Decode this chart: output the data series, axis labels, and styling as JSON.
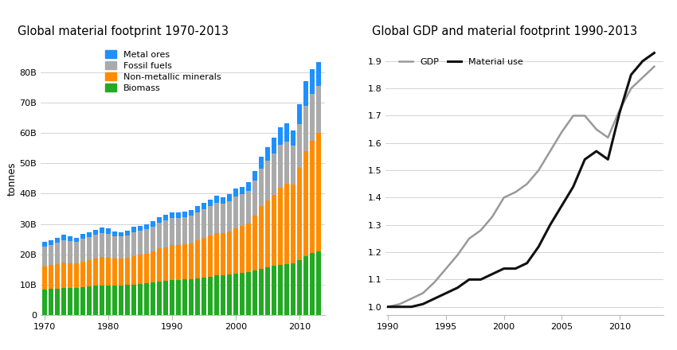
{
  "left_title": "Global material footprint 1970-2013",
  "right_title": "Global GDP and material footprint 1990-2013",
  "left_ylabel": "tonnes",
  "bar_years": [
    1970,
    1971,
    1972,
    1973,
    1974,
    1975,
    1976,
    1977,
    1978,
    1979,
    1980,
    1981,
    1982,
    1983,
    1984,
    1985,
    1986,
    1987,
    1988,
    1989,
    1990,
    1991,
    1992,
    1993,
    1994,
    1995,
    1996,
    1997,
    1998,
    1999,
    2000,
    2001,
    2002,
    2003,
    2004,
    2005,
    2006,
    2007,
    2008,
    2009,
    2010,
    2011,
    2012,
    2013
  ],
  "biomass": [
    8.5,
    8.6,
    8.7,
    8.9,
    8.9,
    9.0,
    9.2,
    9.4,
    9.6,
    9.8,
    9.8,
    9.7,
    9.8,
    9.9,
    10.0,
    10.2,
    10.5,
    10.7,
    11.0,
    11.2,
    11.5,
    11.6,
    11.7,
    11.9,
    12.1,
    12.4,
    12.7,
    13.0,
    13.2,
    13.4,
    13.7,
    14.0,
    14.2,
    14.7,
    15.3,
    15.8,
    16.2,
    16.5,
    16.8,
    17.0,
    18.0,
    19.5,
    20.5,
    21.0
  ],
  "non_metallic": [
    7.5,
    7.8,
    8.2,
    8.5,
    8.2,
    8.0,
    8.5,
    8.8,
    9.1,
    9.4,
    9.2,
    8.8,
    8.8,
    9.0,
    9.5,
    9.7,
    9.8,
    10.2,
    11.0,
    11.2,
    11.5,
    11.5,
    11.6,
    11.8,
    12.5,
    13.0,
    13.4,
    14.0,
    13.8,
    14.2,
    15.0,
    15.3,
    16.0,
    18.0,
    20.5,
    22.0,
    23.5,
    25.5,
    26.5,
    26.0,
    30.5,
    34.5,
    37.0,
    39.0
  ],
  "fossil_fuels": [
    6.5,
    6.6,
    7.0,
    7.3,
    7.2,
    7.0,
    7.4,
    7.5,
    7.7,
    7.9,
    7.8,
    7.5,
    7.3,
    7.4,
    7.8,
    7.9,
    8.0,
    8.3,
    8.5,
    8.8,
    9.0,
    9.0,
    9.0,
    9.1,
    9.3,
    9.5,
    9.8,
    10.0,
    9.8,
    10.0,
    10.5,
    10.5,
    10.8,
    11.5,
    12.5,
    13.0,
    13.5,
    14.0,
    13.8,
    12.8,
    14.5,
    15.0,
    15.5,
    15.5
  ],
  "metal_ores": [
    1.5,
    1.6,
    1.6,
    1.7,
    1.6,
    1.5,
    1.6,
    1.6,
    1.7,
    1.8,
    1.7,
    1.6,
    1.5,
    1.5,
    1.7,
    1.7,
    1.7,
    1.8,
    1.8,
    1.9,
    1.9,
    1.8,
    1.9,
    1.9,
    2.0,
    2.2,
    2.2,
    2.3,
    2.1,
    2.2,
    2.5,
    2.5,
    2.7,
    3.2,
    3.9,
    4.5,
    5.2,
    6.0,
    6.0,
    5.0,
    6.5,
    8.0,
    8.0,
    8.0
  ],
  "color_biomass": "#22aa22",
  "color_non_metallic": "#ff8c00",
  "color_fossil_fuels": "#aaaaaa",
  "color_metal_ores": "#1e90ff",
  "line_years": [
    1990,
    1991,
    1992,
    1993,
    1994,
    1995,
    1996,
    1997,
    1998,
    1999,
    2000,
    2001,
    2002,
    2003,
    2004,
    2005,
    2006,
    2007,
    2008,
    2009,
    2010,
    2011,
    2012,
    2013
  ],
  "gdp": [
    1.0,
    1.01,
    1.03,
    1.05,
    1.09,
    1.14,
    1.19,
    1.25,
    1.28,
    1.33,
    1.4,
    1.42,
    1.45,
    1.5,
    1.57,
    1.64,
    1.7,
    1.7,
    1.65,
    1.62,
    1.72,
    1.8,
    1.84,
    1.88
  ],
  "material_use": [
    1.0,
    1.0,
    1.0,
    1.01,
    1.03,
    1.05,
    1.07,
    1.1,
    1.1,
    1.12,
    1.14,
    1.14,
    1.16,
    1.22,
    1.3,
    1.37,
    1.44,
    1.54,
    1.57,
    1.54,
    1.71,
    1.85,
    1.9,
    1.93
  ],
  "color_gdp": "#999999",
  "color_material_use": "#111111",
  "yticks_left": [
    0,
    10,
    20,
    30,
    40,
    50,
    60,
    70,
    80
  ],
  "ytick_labels_left": [
    "0",
    "10B",
    "20B",
    "30B",
    "40B",
    "50B",
    "60B",
    "70B",
    "80B"
  ],
  "yticks_right": [
    1.0,
    1.1,
    1.2,
    1.3,
    1.4,
    1.5,
    1.6,
    1.7,
    1.8,
    1.9
  ],
  "xticks_left": [
    1970,
    1980,
    1990,
    2000,
    2010
  ],
  "xticks_right": [
    1990,
    1995,
    2000,
    2005,
    2010
  ],
  "ylim_left": [
    0,
    90
  ],
  "ylim_right": [
    0.97,
    1.97
  ],
  "bg_color": "#ffffff"
}
